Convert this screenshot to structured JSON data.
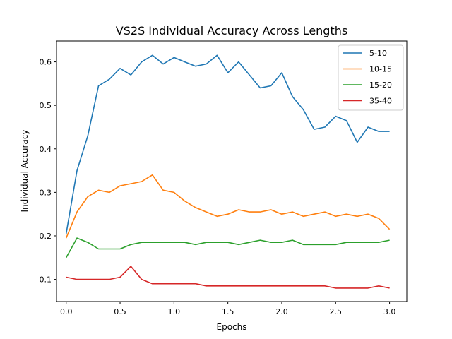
{
  "chart_data": {
    "type": "line",
    "title": "VS2S Individual Accuracy Across Lengths",
    "xlabel": "Epochs",
    "ylabel": "Individual Accuracy",
    "xlim": [
      -0.09,
      3.16
    ],
    "ylim": [
      0.049,
      0.648
    ],
    "x_ticks": [
      "0.0",
      "0.5",
      "1.0",
      "1.5",
      "2.0",
      "2.5",
      "3.0"
    ],
    "y_ticks": [
      "0.1",
      "0.2",
      "0.3",
      "0.4",
      "0.5",
      "0.6"
    ],
    "grid": false,
    "legend_position": "top-right",
    "x": [
      0.0,
      0.1,
      0.2,
      0.3,
      0.4,
      0.5,
      0.6,
      0.7,
      0.8,
      0.9,
      1.0,
      1.1,
      1.2,
      1.3,
      1.4,
      1.5,
      1.6,
      1.7,
      1.8,
      1.9,
      2.0,
      2.1,
      2.2,
      2.3,
      2.4,
      2.5,
      2.6,
      2.7,
      2.8,
      2.9,
      3.0
    ],
    "series": [
      {
        "name": "5-10",
        "color": "#1f77b4",
        "values": [
          0.205,
          0.35,
          0.43,
          0.545,
          0.56,
          0.585,
          0.57,
          0.6,
          0.615,
          0.595,
          0.61,
          0.6,
          0.59,
          0.595,
          0.615,
          0.575,
          0.6,
          0.57,
          0.54,
          0.545,
          0.575,
          0.52,
          0.49,
          0.445,
          0.45,
          0.475,
          0.465,
          0.415,
          0.45,
          0.44,
          0.44
        ]
      },
      {
        "name": "10-15",
        "color": "#ff7f0e",
        "values": [
          0.195,
          0.255,
          0.29,
          0.305,
          0.3,
          0.315,
          0.32,
          0.325,
          0.34,
          0.305,
          0.3,
          0.28,
          0.265,
          0.255,
          0.245,
          0.25,
          0.26,
          0.255,
          0.255,
          0.26,
          0.25,
          0.255,
          0.245,
          0.25,
          0.255,
          0.245,
          0.25,
          0.245,
          0.25,
          0.24,
          0.215
        ]
      },
      {
        "name": "15-20",
        "color": "#2ca02c",
        "values": [
          0.15,
          0.195,
          0.185,
          0.17,
          0.17,
          0.17,
          0.18,
          0.185,
          0.185,
          0.185,
          0.185,
          0.185,
          0.18,
          0.185,
          0.185,
          0.185,
          0.18,
          0.185,
          0.19,
          0.185,
          0.185,
          0.19,
          0.18,
          0.18,
          0.18,
          0.18,
          0.185,
          0.185,
          0.185,
          0.185,
          0.19
        ]
      },
      {
        "name": "35-40",
        "color": "#d62728",
        "values": [
          0.105,
          0.1,
          0.1,
          0.1,
          0.1,
          0.105,
          0.13,
          0.1,
          0.09,
          0.09,
          0.09,
          0.09,
          0.09,
          0.085,
          0.085,
          0.085,
          0.085,
          0.085,
          0.085,
          0.085,
          0.085,
          0.085,
          0.085,
          0.085,
          0.085,
          0.08,
          0.08,
          0.08,
          0.08,
          0.085,
          0.08
        ]
      }
    ]
  }
}
